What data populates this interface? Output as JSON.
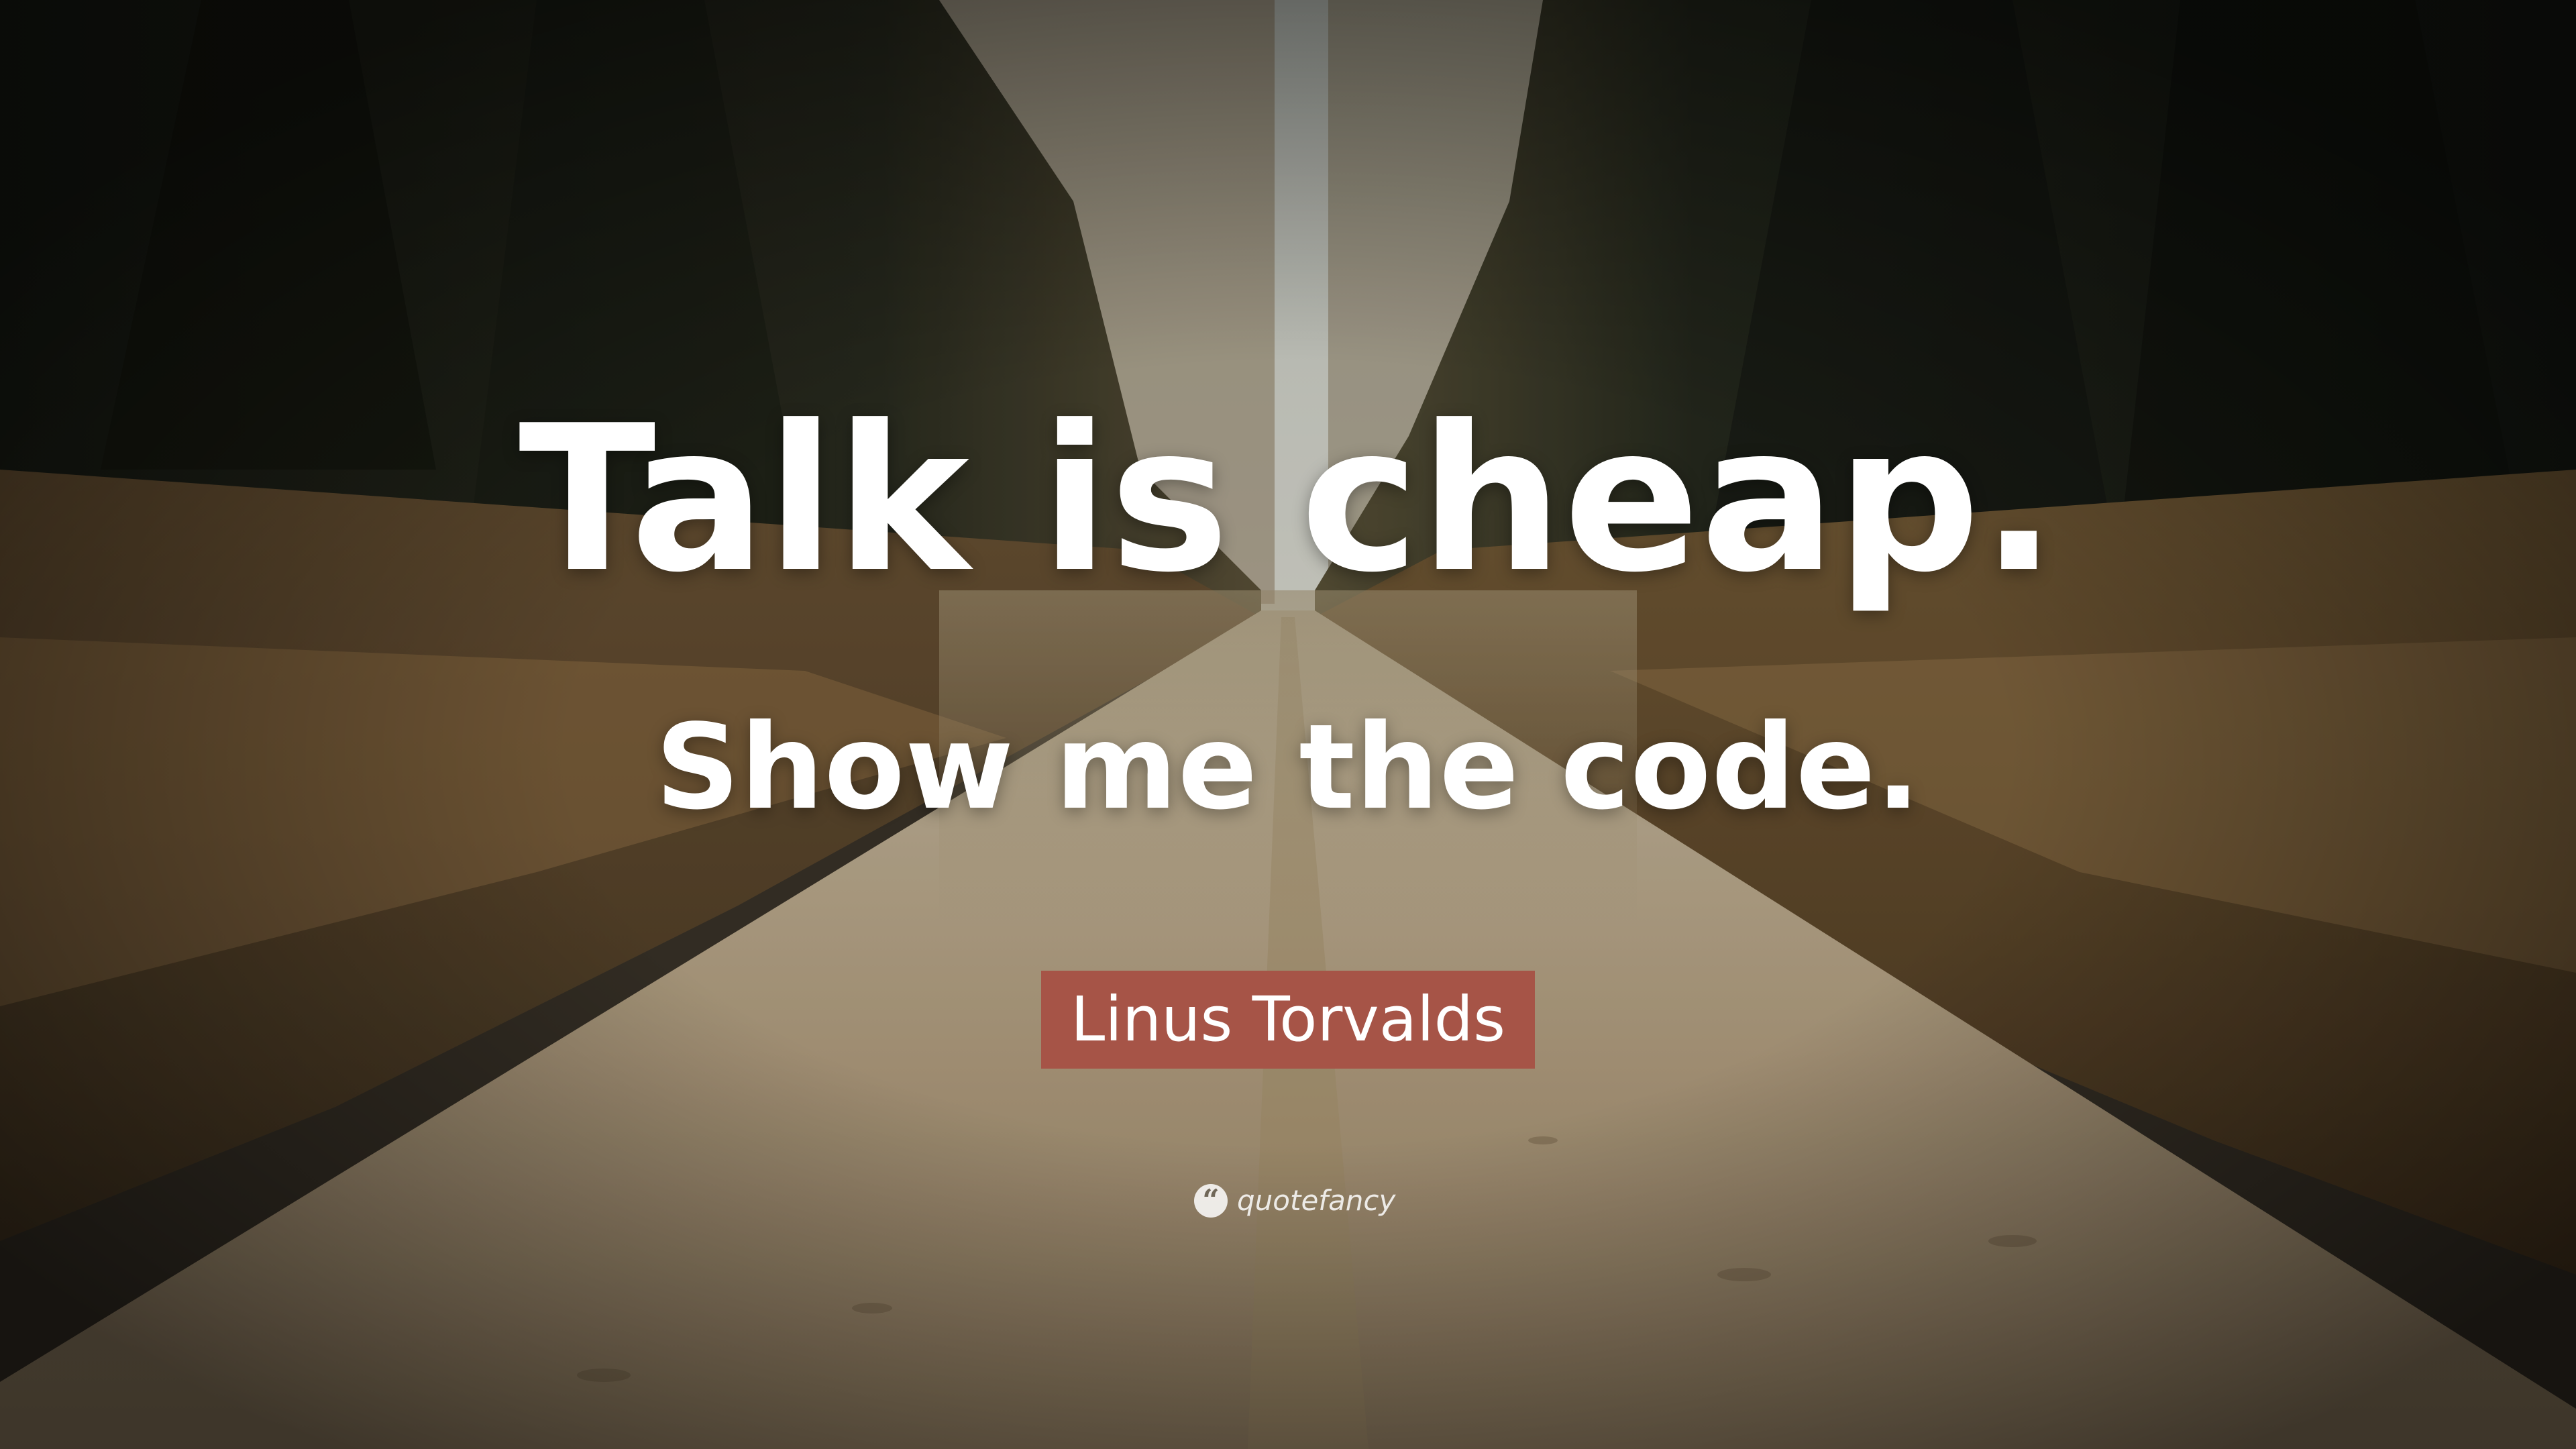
{
  "quote": {
    "line1": "Talk is cheap.",
    "line2": "Show me the code."
  },
  "author": {
    "name": "Linus Torvalds",
    "badge_color": "#a65447"
  },
  "brand": {
    "name": "quotefancy",
    "icon": "quote-mark-icon",
    "icon_glyph": "“"
  },
  "background": {
    "scene": "forest dirt road",
    "colors": {
      "sky": "#d3d5cd",
      "forest_dark": "#1f2419",
      "grass": "#8a6a3e",
      "road": "#b9a585"
    }
  }
}
